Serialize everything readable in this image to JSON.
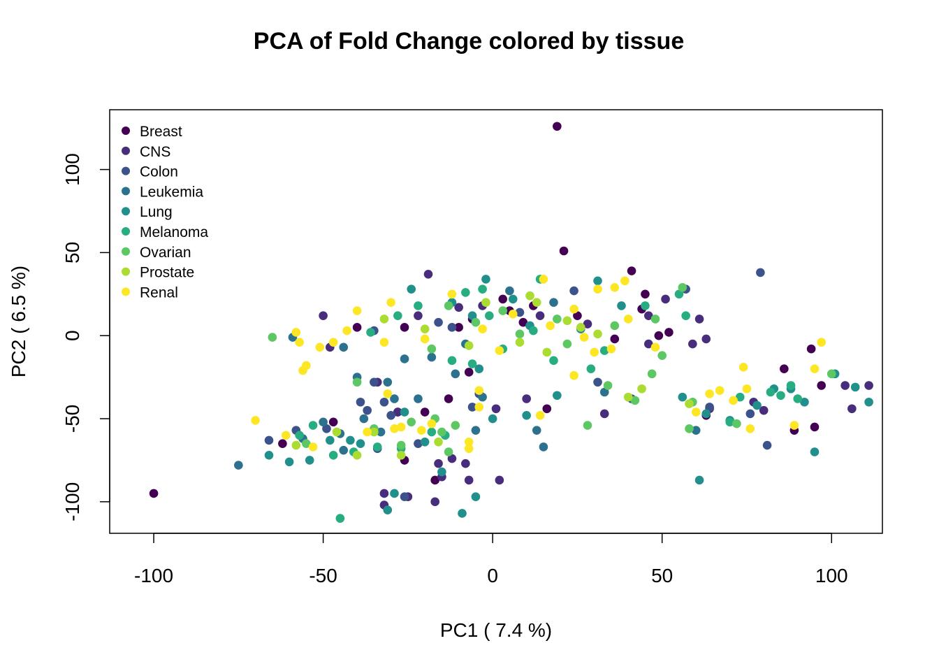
{
  "chart_data": {
    "type": "scatter",
    "title": "PCA of Fold Change  colored by tissue",
    "xlabel": "PC1 ( 7.4 %)",
    "ylabel": "PC2 ( 6.5 %)",
    "xlim": [
      -113,
      115
    ],
    "ylim": [
      -119,
      136
    ],
    "xticks": [
      -100,
      -50,
      0,
      50,
      100
    ],
    "xtick_labels": [
      "-100",
      "-50",
      "0",
      "50",
      "100"
    ],
    "yticks": [
      -100,
      -50,
      0,
      50,
      100
    ],
    "ytick_labels": [
      "-100",
      "-50",
      "0",
      "50",
      "100"
    ],
    "grid": false,
    "legend_position": "top-left",
    "series": [
      {
        "name": "Breast",
        "color": "#440154",
        "points": [
          [
            -100,
            -95
          ],
          [
            19,
            126
          ],
          [
            21,
            51
          ],
          [
            41,
            39
          ],
          [
            -62,
            -65
          ],
          [
            -47,
            -52
          ],
          [
            -28,
            -46
          ],
          [
            -26,
            -75
          ],
          [
            -17,
            -87
          ],
          [
            -13,
            -38
          ],
          [
            -7,
            -22
          ],
          [
            16,
            -44
          ],
          [
            3,
            22
          ],
          [
            -10,
            5
          ],
          [
            5,
            15
          ],
          [
            12,
            18
          ],
          [
            25,
            12
          ],
          [
            45,
            25
          ],
          [
            44,
            16
          ],
          [
            49,
            0
          ],
          [
            52,
            2
          ],
          [
            63,
            -48
          ],
          [
            86,
            -20
          ],
          [
            94,
            -8
          ],
          [
            97,
            -30
          ],
          [
            95,
            -55
          ],
          [
            89,
            -57
          ],
          [
            -20,
            -46
          ],
          [
            -6,
            10
          ],
          [
            9,
            8
          ],
          [
            -26,
            5
          ],
          [
            -40,
            5
          ],
          [
            36,
            -2
          ]
        ]
      },
      {
        "name": "CNS",
        "color": "#472D7B",
        "points": [
          [
            -19,
            37
          ],
          [
            -50,
            12
          ],
          [
            -48,
            -7
          ],
          [
            -32,
            -95
          ],
          [
            -32,
            -102
          ],
          [
            -28,
            -46
          ],
          [
            -25,
            -97
          ],
          [
            -17,
            -100
          ],
          [
            -16,
            -77
          ],
          [
            -15,
            -85
          ],
          [
            -12,
            -74
          ],
          [
            -8,
            -77
          ],
          [
            -7,
            -87
          ],
          [
            1,
            -44
          ],
          [
            2,
            -87
          ],
          [
            10,
            -38
          ],
          [
            33,
            -47
          ],
          [
            46,
            12
          ],
          [
            51,
            22
          ],
          [
            59,
            -5
          ],
          [
            61,
            10
          ],
          [
            63,
            -2
          ],
          [
            64,
            -44
          ],
          [
            77,
            -40
          ],
          [
            80,
            -45
          ],
          [
            104,
            -30
          ],
          [
            106,
            -44
          ],
          [
            111,
            -30
          ],
          [
            -10,
            17
          ],
          [
            -3,
            18
          ],
          [
            14,
            12
          ],
          [
            28,
            7
          ],
          [
            46,
            -5
          ],
          [
            -22,
            12
          ],
          [
            -34,
            -28
          ]
        ]
      },
      {
        "name": "Colon",
        "color": "#3B528B",
        "points": [
          [
            -66,
            -63
          ],
          [
            -58,
            -57
          ],
          [
            -49,
            -56
          ],
          [
            -37,
            -45
          ],
          [
            -35,
            -28
          ],
          [
            -34,
            -68
          ],
          [
            -32,
            -40
          ],
          [
            -30,
            -48
          ],
          [
            -26,
            -97
          ],
          [
            -22,
            -65
          ],
          [
            -6,
            -43
          ],
          [
            -4,
            -35
          ],
          [
            24,
            27
          ],
          [
            31,
            -28
          ],
          [
            41,
            -38
          ],
          [
            64,
            -43
          ],
          [
            76,
            -47
          ],
          [
            79,
            38
          ],
          [
            81,
            -66
          ],
          [
            8,
            14
          ],
          [
            -12,
            5
          ],
          [
            -35,
            3
          ],
          [
            57,
            28
          ],
          [
            -39,
            -40
          ],
          [
            -16,
            8
          ]
        ]
      },
      {
        "name": "Leukemia",
        "color": "#2C728E",
        "points": [
          [
            -75,
            -78
          ],
          [
            -59,
            -1
          ],
          [
            -56,
            -62
          ],
          [
            -50,
            -52
          ],
          [
            -44,
            -7
          ],
          [
            -40,
            -25
          ],
          [
            -38,
            -50
          ],
          [
            -33,
            -58
          ],
          [
            -31,
            -28
          ],
          [
            -29,
            -38
          ],
          [
            -26,
            -14
          ],
          [
            -22,
            -38
          ],
          [
            -5,
            -57
          ],
          [
            13,
            -57
          ],
          [
            15,
            -67
          ],
          [
            -3,
            -37
          ],
          [
            5,
            27
          ],
          [
            -8,
            -5
          ],
          [
            18,
            20
          ],
          [
            33,
            -34
          ],
          [
            60,
            -57
          ],
          [
            -18,
            -13
          ],
          [
            -11,
            -23
          ],
          [
            -45,
            -59
          ],
          [
            -44,
            -69
          ]
        ]
      },
      {
        "name": "Lung",
        "color": "#21908C",
        "points": [
          [
            -66,
            -72
          ],
          [
            -60,
            -76
          ],
          [
            -54,
            -75
          ],
          [
            -48,
            -63
          ],
          [
            -42,
            -63
          ],
          [
            -39,
            -65
          ],
          [
            -31,
            -105
          ],
          [
            -29,
            -95
          ],
          [
            -26,
            -46
          ],
          [
            -20,
            -64
          ],
          [
            -15,
            -82
          ],
          [
            -9,
            -107
          ],
          [
            -5,
            -97
          ],
          [
            0,
            -50
          ],
          [
            10,
            -48
          ],
          [
            -2,
            34
          ],
          [
            6,
            22
          ],
          [
            11,
            6
          ],
          [
            26,
            4
          ],
          [
            31,
            33
          ],
          [
            38,
            18
          ],
          [
            56,
            -37
          ],
          [
            61,
            -87
          ],
          [
            63,
            -47
          ],
          [
            70,
            -51
          ],
          [
            78,
            -42
          ],
          [
            83,
            -32
          ],
          [
            88,
            -32
          ],
          [
            92,
            -40
          ],
          [
            95,
            -70
          ],
          [
            101,
            -23
          ],
          [
            107,
            -31
          ],
          [
            111,
            -40
          ],
          [
            -12,
            20
          ],
          [
            -6,
            12
          ],
          [
            -24,
            28
          ],
          [
            -4,
            -20
          ],
          [
            19,
            -36
          ]
        ]
      },
      {
        "name": "Melanoma",
        "color": "#27AD81",
        "points": [
          [
            -57,
            -60
          ],
          [
            -53,
            -54
          ],
          [
            -47,
            -72
          ],
          [
            -45,
            -110
          ],
          [
            -41,
            -70
          ],
          [
            -34,
            -67
          ],
          [
            -27,
            -68
          ],
          [
            -18,
            -58
          ],
          [
            -14,
            -60
          ],
          [
            14,
            34
          ],
          [
            -6,
            -17
          ],
          [
            18,
            -15
          ],
          [
            29,
            -20
          ],
          [
            33,
            -9
          ],
          [
            45,
            18
          ],
          [
            55,
            25
          ],
          [
            57,
            12
          ],
          [
            70,
            -52
          ],
          [
            73,
            -37
          ],
          [
            82,
            -34
          ],
          [
            85,
            -36
          ],
          [
            88,
            -30
          ],
          [
            90,
            -38
          ],
          [
            -22,
            18
          ],
          [
            -8,
            26
          ],
          [
            -36,
            2
          ],
          [
            -28,
            12
          ],
          [
            3,
            -8
          ],
          [
            12,
            3
          ],
          [
            -1,
            12
          ],
          [
            -3,
            28
          ],
          [
            -12,
            -15
          ]
        ]
      },
      {
        "name": "Ovarian",
        "color": "#5DC863",
        "points": [
          [
            -65,
            -1
          ],
          [
            -55,
            -65
          ],
          [
            -40,
            -28
          ],
          [
            -35,
            -56
          ],
          [
            -27,
            -66
          ],
          [
            -24,
            -52
          ],
          [
            -17,
            -50
          ],
          [
            -15,
            -58
          ],
          [
            -13,
            -70
          ],
          [
            -11,
            -54
          ],
          [
            22,
            -5
          ],
          [
            28,
            -54
          ],
          [
            34,
            -30
          ],
          [
            42,
            -39
          ],
          [
            47,
            -23
          ],
          [
            50,
            -12
          ],
          [
            56,
            29
          ],
          [
            58,
            -56
          ],
          [
            59,
            -40
          ],
          [
            72,
            -53
          ],
          [
            100,
            -23
          ],
          [
            -13,
            18
          ],
          [
            -5,
            8
          ],
          [
            8,
            1
          ],
          [
            19,
            10
          ],
          [
            36,
            6
          ],
          [
            48,
            10
          ],
          [
            -18,
            -8
          ],
          [
            3,
            15
          ]
        ]
      },
      {
        "name": "Prostate",
        "color": "#AADC32",
        "points": [
          [
            -58,
            -66
          ],
          [
            -46,
            -58
          ],
          [
            -40,
            -72
          ],
          [
            -35,
            -58
          ],
          [
            -27,
            -72
          ],
          [
            -16,
            -64
          ],
          [
            13,
            20
          ],
          [
            22,
            9
          ],
          [
            26,
            5
          ],
          [
            31,
            1
          ],
          [
            -32,
            10
          ],
          [
            -20,
            4
          ],
          [
            -7,
            -6
          ],
          [
            8,
            -4
          ],
          [
            16,
            -10
          ],
          [
            40,
            -37
          ],
          [
            44,
            -32
          ],
          [
            58,
            -41
          ],
          [
            -2,
            20
          ],
          [
            11,
            24
          ]
        ]
      },
      {
        "name": "Renal",
        "color": "#FDE725",
        "points": [
          [
            -70,
            -51
          ],
          [
            -61,
            -60
          ],
          [
            -58,
            2
          ],
          [
            -57,
            -4
          ],
          [
            -56,
            -21
          ],
          [
            -55,
            -18
          ],
          [
            -53,
            -67
          ],
          [
            -51,
            -7
          ],
          [
            -47,
            -4
          ],
          [
            -43,
            3
          ],
          [
            -37,
            -58
          ],
          [
            -31,
            -35
          ],
          [
            -29,
            -56
          ],
          [
            -27,
            -55
          ],
          [
            -21,
            -57
          ],
          [
            -18,
            -53
          ],
          [
            -7,
            -64
          ],
          [
            -7,
            -68
          ],
          [
            -4,
            -33
          ],
          [
            -4,
            -43
          ],
          [
            14,
            -48
          ],
          [
            15,
            34
          ],
          [
            24,
            -24
          ],
          [
            24,
            16
          ],
          [
            31,
            28
          ],
          [
            35,
            -8
          ],
          [
            36,
            29
          ],
          [
            39,
            33
          ],
          [
            40,
            10
          ],
          [
            48,
            -7
          ],
          [
            60,
            -46
          ],
          [
            64,
            -35
          ],
          [
            67,
            -33
          ],
          [
            71,
            -39
          ],
          [
            74,
            -19
          ],
          [
            75,
            -32
          ],
          [
            76,
            -56
          ],
          [
            89,
            -54
          ],
          [
            95,
            -20
          ],
          [
            97,
            -4
          ],
          [
            -12,
            25
          ],
          [
            -3,
            4
          ],
          [
            6,
            13
          ],
          [
            17,
            6
          ],
          [
            27,
            -1
          ],
          [
            -20,
            -2
          ],
          [
            -30,
            20
          ],
          [
            2,
            -9
          ],
          [
            30,
            -10
          ],
          [
            -40,
            15
          ],
          [
            -32,
            -4
          ]
        ]
      }
    ]
  }
}
